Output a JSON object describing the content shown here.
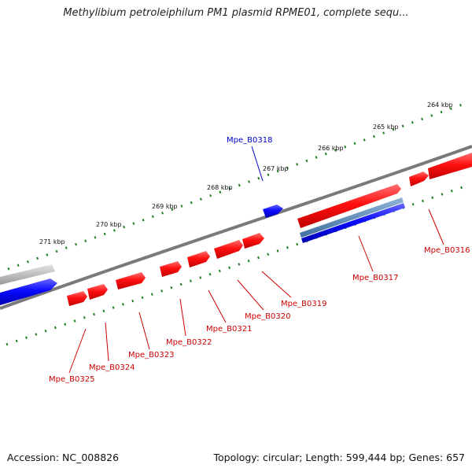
{
  "title": "Methylibium petroleiphilum PM1 plasmid RPME01, complete sequ...",
  "footer": {
    "accession": "Accession: NC_008826",
    "summary": "Topology: circular; Length: 599,444 bp; Genes: 657"
  },
  "colors": {
    "forward_gene": "#ff0000",
    "reverse_gene": "#0000ff",
    "other_feature": "#4f7faf",
    "backbone": "#777777",
    "ticks": "#1f7f1f",
    "label_forward": "#cc0000",
    "label_reverse": "#0000cc"
  },
  "ruler": {
    "labels": [
      "271 kbp",
      "270 kbp",
      "269 kbp",
      "268 kbp",
      "267 kbp",
      "266 kbp",
      "265 kbp",
      "264 kbp"
    ]
  },
  "genes": [
    {
      "name": "Mpe_B0316",
      "strand": "forward"
    },
    {
      "name": "Mpe_B0317",
      "strand": "forward"
    },
    {
      "name": "Mpe_B0318",
      "strand": "reverse"
    },
    {
      "name": "Mpe_B0319",
      "strand": "forward"
    },
    {
      "name": "Mpe_B0320",
      "strand": "forward"
    },
    {
      "name": "Mpe_B0321",
      "strand": "forward"
    },
    {
      "name": "Mpe_B0322",
      "strand": "forward"
    },
    {
      "name": "Mpe_B0323",
      "strand": "forward"
    },
    {
      "name": "Mpe_B0324",
      "strand": "forward"
    },
    {
      "name": "Mpe_B0325",
      "strand": "forward"
    }
  ]
}
